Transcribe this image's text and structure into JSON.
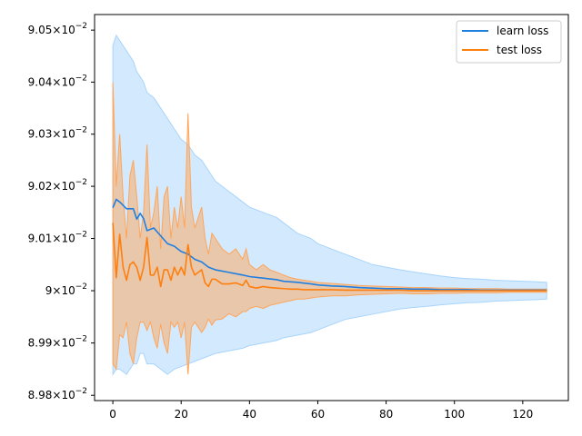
{
  "chart_data": {
    "type": "line",
    "title": "",
    "xlabel": "",
    "ylabel": "",
    "yscale": "log",
    "xlim": [
      -5.35,
      133.35
    ],
    "ylim": [
      0.08979,
      0.09053
    ],
    "grid": false,
    "legend_position": "top-right",
    "x_ticks": [
      {
        "value": 0,
        "label": "0"
      },
      {
        "value": 20,
        "label": "20"
      },
      {
        "value": 40,
        "label": "40"
      },
      {
        "value": 60,
        "label": "60"
      },
      {
        "value": 80,
        "label": "80"
      },
      {
        "value": 100,
        "label": "100"
      },
      {
        "value": 120,
        "label": "120"
      }
    ],
    "y_ticks": [
      {
        "value": 0.0898,
        "mantissa": "8.98",
        "base": "10",
        "exponent": "−2"
      },
      {
        "value": 0.0899,
        "mantissa": "8.99",
        "base": "10",
        "exponent": "−2"
      },
      {
        "value": 0.09,
        "mantissa": "9",
        "base": "10",
        "exponent": "−2"
      },
      {
        "value": 0.0901,
        "mantissa": "9.01",
        "base": "10",
        "exponent": "−2"
      },
      {
        "value": 0.0902,
        "mantissa": "9.02",
        "base": "10",
        "exponent": "−2"
      },
      {
        "value": 0.0903,
        "mantissa": "9.03",
        "base": "10",
        "exponent": "−2"
      },
      {
        "value": 0.0904,
        "mantissa": "9.04",
        "base": "10",
        "exponent": "−2"
      },
      {
        "value": 0.0905,
        "mantissa": "9.05",
        "base": "10",
        "exponent": "−2"
      }
    ],
    "series": [
      {
        "name": "learn loss",
        "color": "#1f7fe0",
        "band_color": "#a8d4fb",
        "x": [
          0,
          1,
          2,
          4,
          6,
          7,
          8,
          9,
          10,
          12,
          14,
          16,
          18,
          20,
          22,
          24,
          26,
          28,
          30,
          34,
          38,
          40,
          44,
          48,
          50,
          54,
          58,
          60,
          64,
          68,
          72,
          76,
          80,
          84,
          88,
          92,
          96,
          100,
          104,
          108,
          112,
          116,
          120,
          124,
          127
        ],
        "y": [
          0.090159,
          0.090175,
          0.09017,
          0.090157,
          0.090157,
          0.090137,
          0.090148,
          0.090138,
          0.090115,
          0.09012,
          0.090105,
          0.09009,
          0.090085,
          0.090075,
          0.09007,
          0.09006,
          0.090055,
          0.090045,
          0.09004,
          0.090035,
          0.09003,
          0.090027,
          0.090024,
          0.090021,
          0.090018,
          0.090016,
          0.090013,
          0.090011,
          0.090009,
          0.090008,
          0.090006,
          0.090005,
          0.090004,
          0.090004,
          0.090003,
          0.090003,
          0.090002,
          0.090002,
          0.090002,
          0.090001,
          0.090001,
          0.090001,
          0.090001,
          0.090001,
          0.090001
        ],
        "upper": [
          0.09047,
          0.09049,
          0.09048,
          0.09046,
          0.09044,
          0.09042,
          0.09041,
          0.0904,
          0.09038,
          0.09037,
          0.09035,
          0.09033,
          0.09031,
          0.09029,
          0.09028,
          0.09026,
          0.09025,
          0.09023,
          0.09021,
          0.09019,
          0.09017,
          0.09016,
          0.09015,
          0.09014,
          0.09013,
          0.09011,
          0.0901,
          0.09009,
          0.09008,
          0.09007,
          0.09006,
          0.09005,
          0.090045,
          0.09004,
          0.090036,
          0.090032,
          0.090028,
          0.090025,
          0.090023,
          0.090022,
          0.09002,
          0.090019,
          0.090018,
          0.090017,
          0.090016
        ],
        "lower": [
          0.08984,
          0.08985,
          0.08985,
          0.08984,
          0.08986,
          0.08986,
          0.08988,
          0.08988,
          0.08986,
          0.08986,
          0.08985,
          0.08984,
          0.08985,
          0.089855,
          0.08986,
          0.089865,
          0.08987,
          0.089875,
          0.08988,
          0.089885,
          0.08989,
          0.089895,
          0.0899,
          0.089905,
          0.08991,
          0.089915,
          0.08992,
          0.089925,
          0.089935,
          0.089945,
          0.08995,
          0.089955,
          0.08996,
          0.089965,
          0.089968,
          0.08997,
          0.089973,
          0.089975,
          0.089977,
          0.089978,
          0.08998,
          0.089981,
          0.089982,
          0.089983,
          0.089984
        ]
      },
      {
        "name": "test loss",
        "color": "#ff7f0e",
        "band_color": "#ffa559",
        "x": [
          0,
          1,
          2,
          3,
          4,
          5,
          6,
          7,
          8,
          9,
          10,
          11,
          12,
          13,
          14,
          15,
          16,
          17,
          18,
          19,
          20,
          21,
          22,
          23,
          24,
          25,
          26,
          27,
          28,
          29,
          30,
          32,
          34,
          36,
          38,
          39,
          40,
          42,
          44,
          46,
          48,
          50,
          52,
          54,
          56,
          58,
          60,
          64,
          68,
          72,
          76,
          80,
          84,
          88,
          92,
          96,
          100,
          104,
          108,
          112,
          116,
          120,
          124,
          127
        ],
        "y": [
          0.09013,
          0.090025,
          0.090108,
          0.090045,
          0.09002,
          0.09005,
          0.090055,
          0.090045,
          0.09002,
          0.090045,
          0.090102,
          0.09003,
          0.09003,
          0.090045,
          0.090008,
          0.09004,
          0.09004,
          0.09002,
          0.090045,
          0.09003,
          0.090045,
          0.09003,
          0.090088,
          0.090045,
          0.09003,
          0.090035,
          0.09004,
          0.090015,
          0.090008,
          0.090022,
          0.090022,
          0.090013,
          0.090013,
          0.090015,
          0.09001,
          0.09002,
          0.090008,
          0.090005,
          0.090008,
          0.090006,
          0.090005,
          0.090004,
          0.090003,
          0.090003,
          0.090002,
          0.090002,
          0.090002,
          0.090002,
          0.090001,
          0.090001,
          0.090001,
          0.090001,
          0.090001,
          0.09,
          0.09,
          0.09,
          0.09,
          0.09,
          0.09,
          0.09,
          0.09,
          0.09,
          0.09,
          0.09
        ],
        "upper": [
          0.0904,
          0.0902,
          0.0903,
          0.09018,
          0.0901,
          0.09022,
          0.09025,
          0.09018,
          0.0901,
          0.09015,
          0.09028,
          0.09012,
          0.09015,
          0.0902,
          0.09008,
          0.09018,
          0.0902,
          0.0901,
          0.09016,
          0.09012,
          0.09018,
          0.09012,
          0.09034,
          0.09016,
          0.09012,
          0.09014,
          0.09016,
          0.0901,
          0.09007,
          0.09011,
          0.0901,
          0.09008,
          0.09007,
          0.09008,
          0.09006,
          0.09008,
          0.09005,
          0.09004,
          0.09005,
          0.09004,
          0.090035,
          0.09003,
          0.090025,
          0.090022,
          0.09002,
          0.090018,
          0.090016,
          0.090014,
          0.090012,
          0.09001,
          0.090009,
          0.090008,
          0.090007,
          0.090006,
          0.090006,
          0.090005,
          0.090005,
          0.090004,
          0.090004,
          0.090004,
          0.090003,
          0.090003,
          0.090003,
          0.090003
        ],
        "lower": [
          0.08986,
          0.08985,
          0.089916,
          0.08991,
          0.08994,
          0.08988,
          0.08986,
          0.08991,
          0.08994,
          0.08994,
          0.089924,
          0.08994,
          0.08991,
          0.08989,
          0.089936,
          0.0899,
          0.08988,
          0.08994,
          0.08993,
          0.08994,
          0.08991,
          0.08994,
          0.08984,
          0.08993,
          0.08994,
          0.08993,
          0.08992,
          0.08993,
          0.089946,
          0.089934,
          0.089944,
          0.089946,
          0.089956,
          0.08995,
          0.08996,
          0.08996,
          0.089966,
          0.08997,
          0.089966,
          0.089972,
          0.089975,
          0.089978,
          0.089981,
          0.089984,
          0.089984,
          0.089986,
          0.089988,
          0.08999,
          0.08999,
          0.089992,
          0.089993,
          0.089994,
          0.089995,
          0.089994,
          0.089994,
          0.089995,
          0.089995,
          0.089996,
          0.089996,
          0.089996,
          0.089997,
          0.089997,
          0.089997,
          0.089997
        ]
      }
    ]
  }
}
